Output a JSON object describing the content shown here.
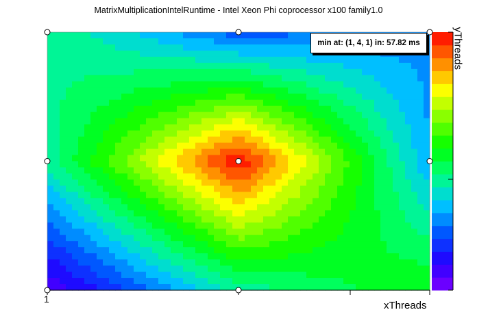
{
  "chart_data": {
    "type": "heatmap",
    "title": "MatrixMultiplicationIntelRuntime - Intel Xeon Phi coprocessor x100 family1.0",
    "xlabel": "xThreads",
    "ylabel": "yThreads",
    "x_tick_labels": [
      "1"
    ],
    "annotation": "min at: (1, 4, 1) in: 57.82 ms",
    "grid": {
      "x": [
        0,
        1,
        2
      ],
      "y": [
        0,
        1,
        2
      ],
      "values_normalized": [
        [
          0.45,
          0.22,
          0.28
        ],
        [
          0.42,
          1.0,
          0.3
        ],
        [
          0.05,
          0.42,
          0.55
        ]
      ],
      "values_note": "row 0 = top (max yThreads), 1.0 = fastest / min runtime (red), 0.0 = slowest (violet)"
    },
    "colormap": [
      "#8000ff",
      "#2200ff",
      "#0055ff",
      "#00c8ff",
      "#00ff80",
      "#00ff00",
      "#80ff00",
      "#ffff00",
      "#ff8000",
      "#ff0000"
    ],
    "colorbar_levels": 20,
    "data_markers": [
      "(0,0)",
      "(1,0)",
      "(2,0)",
      "(0,1)",
      "(1,1)",
      "(2,1)",
      "(0,2)",
      "(1,2)"
    ]
  }
}
